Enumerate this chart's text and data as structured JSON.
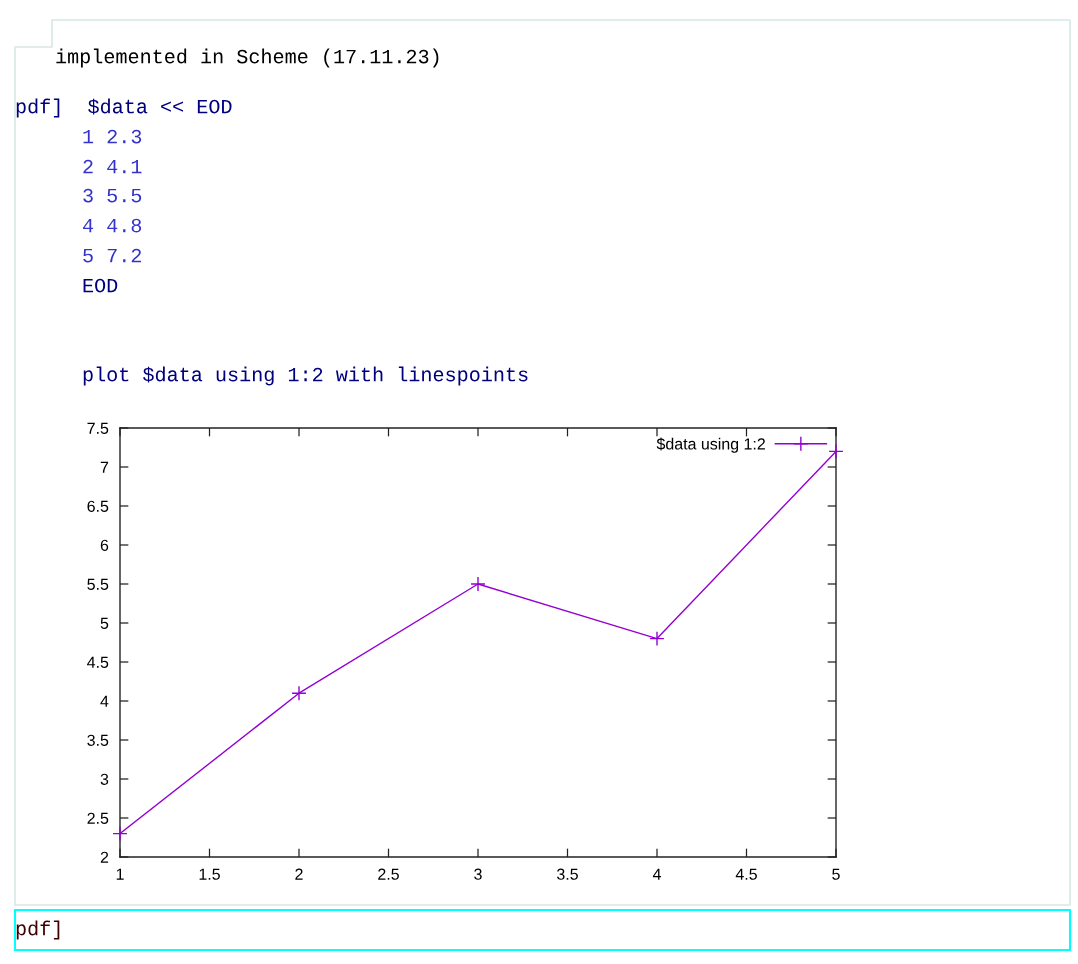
{
  "chart_data": {
    "type": "line",
    "annotations": [
      "implemented in Scheme (17.11.23)",
      "pdf]  $data << EOD",
      "1 2.3",
      "2 4.1",
      "3 5.5",
      "4 4.8",
      "5 7.2",
      "EOD",
      "plot $data using 1:2 with linespoints",
      "pdf]"
    ],
    "x": [
      1,
      2,
      3,
      4,
      5
    ],
    "series": [
      {
        "name": "$data using 1:2",
        "color": "#9400d3",
        "values": [
          2.3,
          4.1,
          5.5,
          4.8,
          7.2
        ]
      }
    ],
    "xlim": [
      1,
      5
    ],
    "ylim": [
      2,
      7.5
    ],
    "xticks": [
      1,
      1.5,
      2,
      2.5,
      3,
      3.5,
      4,
      4.5,
      5
    ],
    "yticks": [
      2,
      2.5,
      3,
      3.5,
      4,
      4.5,
      5,
      5.5,
      6,
      6.5,
      7,
      7.5
    ],
    "grid": false,
    "legend": "top right",
    "marker": "cross",
    "line_style": "solid"
  }
}
